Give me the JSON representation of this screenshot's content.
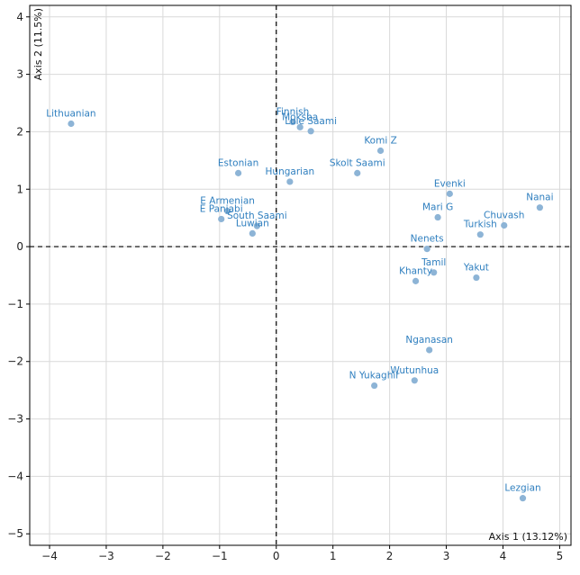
{
  "chart_data": {
    "type": "scatter",
    "title": "",
    "xlabel": "Axis 1 (13.12%)",
    "ylabel": "Axis 2 (11.5%)",
    "xlim": [
      -4.35,
      5.2
    ],
    "ylim": [
      -5.2,
      4.2
    ],
    "xticks": [
      -4,
      -3,
      -2,
      -1,
      0,
      1,
      2,
      3,
      4,
      5
    ],
    "yticks": [
      -5,
      -4,
      -3,
      -2,
      -1,
      0,
      1,
      2,
      3,
      4
    ],
    "xtick_labels": [
      "−4",
      "−3",
      "−2",
      "−1",
      "0",
      "1",
      "2",
      "3",
      "4",
      "5"
    ],
    "ytick_labels": [
      "−5",
      "−4",
      "−3",
      "−2",
      "−1",
      "0",
      "1",
      "2",
      "3",
      "4"
    ],
    "grid": true,
    "zero_lines": "dashed",
    "points": [
      {
        "label": "Lithuanian",
        "x": -3.62,
        "y": 2.14
      },
      {
        "label": "Finnish",
        "x": 0.29,
        "y": 2.17
      },
      {
        "label": "Moksha",
        "x": 0.42,
        "y": 2.08
      },
      {
        "label": "Lule Saami",
        "x": 0.61,
        "y": 2.01
      },
      {
        "label": "Komi Z",
        "x": 1.84,
        "y": 1.67
      },
      {
        "label": "Estonian",
        "x": -0.67,
        "y": 1.28
      },
      {
        "label": "Hungarian",
        "x": 0.24,
        "y": 1.13
      },
      {
        "label": "Skolt Saami",
        "x": 1.43,
        "y": 1.28
      },
      {
        "label": "Evenki",
        "x": 3.06,
        "y": 0.92
      },
      {
        "label": "Nanai",
        "x": 4.65,
        "y": 0.68
      },
      {
        "label": "E Armenian",
        "x": -0.86,
        "y": 0.62
      },
      {
        "label": "Mari G",
        "x": 2.85,
        "y": 0.51
      },
      {
        "label": "Chuvash",
        "x": 4.02,
        "y": 0.37
      },
      {
        "label": "South Saami",
        "x": -0.34,
        "y": 0.36
      },
      {
        "label": "E Panjabi",
        "x": -0.97,
        "y": 0.48
      },
      {
        "label": "Turkish",
        "x": 3.6,
        "y": 0.21
      },
      {
        "label": "Luwian",
        "x": -0.42,
        "y": 0.23
      },
      {
        "label": "Nenets",
        "x": 2.66,
        "y": -0.04
      },
      {
        "label": "Tamil",
        "x": 2.78,
        "y": -0.45
      },
      {
        "label": "Yakut",
        "x": 3.53,
        "y": -0.54
      },
      {
        "label": "Khanty",
        "x": 2.46,
        "y": -0.6
      },
      {
        "label": "Nganasan",
        "x": 2.7,
        "y": -1.8
      },
      {
        "label": "Wutunhua",
        "x": 2.44,
        "y": -2.33
      },
      {
        "label": "N Yukaghir",
        "x": 1.73,
        "y": -2.42
      },
      {
        "label": "Lezgian",
        "x": 4.35,
        "y": -4.38
      }
    ]
  },
  "colors": {
    "point": "#8db4d6",
    "label": "#2f7fbf",
    "grid": "#d9d9d9",
    "axis": "#000000"
  }
}
